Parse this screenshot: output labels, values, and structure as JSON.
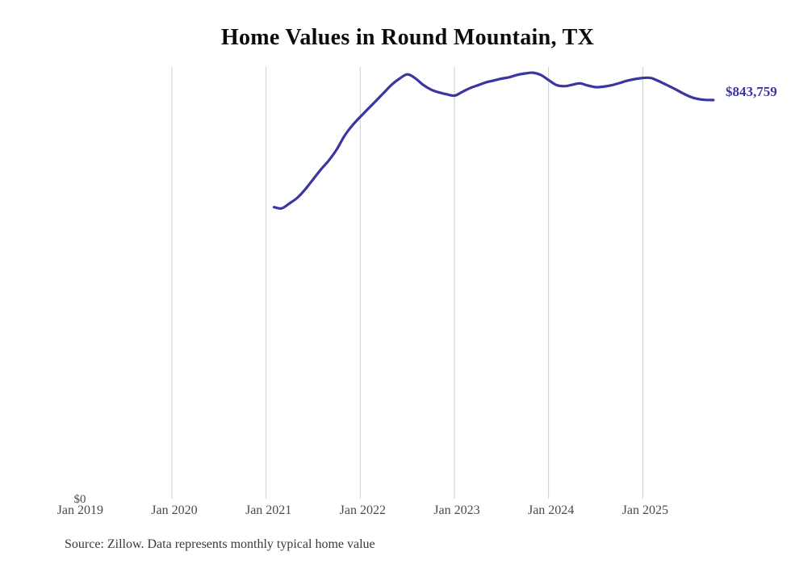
{
  "title": "Home Values in Round Mountain, TX",
  "y_axis": {
    "zero_label": "$0"
  },
  "latest_value_label": "$843,759",
  "source_note": "Source: Zillow. Data represents monthly typical home value",
  "colors": {
    "line": "#3b35a0",
    "latest_label": "#3b35a0",
    "grid": "#cccccc",
    "title_text": "#0b0b0b",
    "axis_text": "#4a4a4a",
    "source_text": "#3a3a3a",
    "background": "#ffffff"
  },
  "chart_data": {
    "type": "line",
    "title": "Home Values in Round Mountain, TX",
    "xlabel": "",
    "ylabel": "",
    "ylim": [
      0,
      913700
    ],
    "grid": "vertical-only",
    "legend": "none",
    "y_ticks": [
      {
        "label": "$0",
        "value": 0
      }
    ],
    "x_ticks": [
      {
        "label": "Jan 2019",
        "gridline": false
      },
      {
        "label": "Jan 2020",
        "gridline": true
      },
      {
        "label": "Jan 2021",
        "gridline": true
      },
      {
        "label": "Jan 2022",
        "gridline": true
      },
      {
        "label": "Jan 2023",
        "gridline": true
      },
      {
        "label": "Jan 2024",
        "gridline": true
      },
      {
        "label": "Jan 2025",
        "gridline": true
      }
    ],
    "tick_interval_months": 12,
    "series": [
      {
        "name": "Monthly typical home value",
        "frequency": "monthly",
        "x_start": "Feb 2021",
        "x_end": "Oct 2025",
        "start_offset_months_from_jan_2019": 25,
        "last_value_label": "$843,759",
        "values": [
          617000,
          614500,
          625000,
          637000,
          655000,
          676000,
          697000,
          716000,
          739000,
          768000,
          790000,
          808000,
          825000,
          842000,
          859000,
          876000,
          889000,
          898000,
          890000,
          876000,
          866000,
          860000,
          856000,
          853000,
          861000,
          869000,
          875000,
          881000,
          885000,
          889000,
          892000,
          897000,
          900000,
          901500,
          897000,
          886000,
          875500,
          873000,
          876000,
          879000,
          874500,
          871000,
          872000,
          875000,
          879500,
          884500,
          888000,
          890500,
          890500,
          884000,
          876000,
          868000,
          859000,
          851000,
          846000,
          844000,
          843759
        ]
      }
    ]
  }
}
